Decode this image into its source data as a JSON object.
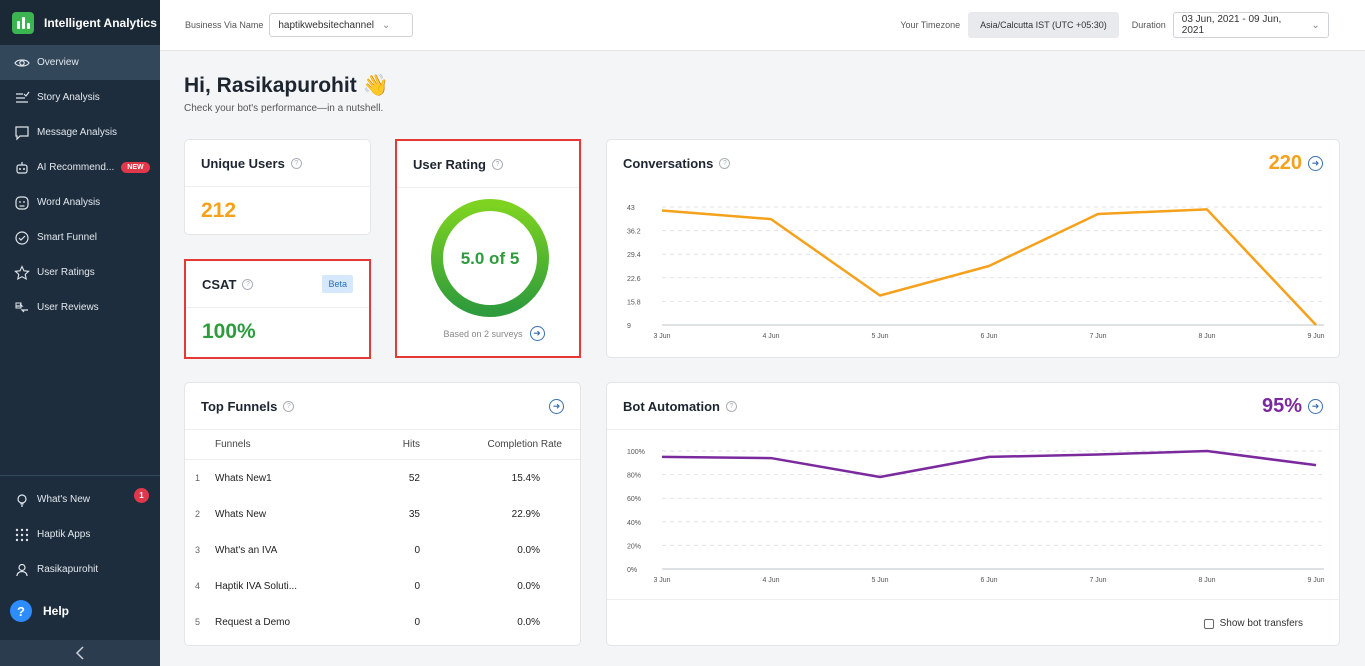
{
  "app": {
    "title": "Intelligent Analytics"
  },
  "sidebar": {
    "items": [
      {
        "label": "Overview",
        "icon": "eye-icon",
        "active": true
      },
      {
        "label": "Story Analysis",
        "icon": "story-icon"
      },
      {
        "label": "Message Analysis",
        "icon": "message-icon"
      },
      {
        "label": "AI Recommend...",
        "icon": "robot-icon",
        "badge": "NEW"
      },
      {
        "label": "Word Analysis",
        "icon": "face-icon"
      },
      {
        "label": "Smart Funnel",
        "icon": "funnel-icon"
      },
      {
        "label": "User Ratings",
        "icon": "star-icon"
      },
      {
        "label": "User Reviews",
        "icon": "review-icon"
      }
    ],
    "bottom": [
      {
        "label": "What's New",
        "icon": "bulb-icon",
        "badge": "1"
      },
      {
        "label": "Haptik Apps",
        "icon": "grid-icon"
      },
      {
        "label": "Rasikapurohit",
        "icon": "user-icon"
      }
    ],
    "help_label": "Help",
    "help_icon_text": "?"
  },
  "header": {
    "business_label": "Business Via Name",
    "business_value": "haptikwebsitechannel",
    "timezone_label": "Your Timezone",
    "timezone_value": "Asia/Calcutta IST (UTC +05:30)",
    "duration_label": "Duration",
    "duration_value": "03 Jun, 2021 - 09 Jun, 2021"
  },
  "greeting": {
    "title": "Hi, Rasikapurohit",
    "emoji": "👋",
    "subtitle": "Check your bot's performance—in a nutshell."
  },
  "unique_users": {
    "title": "Unique Users",
    "value": "212"
  },
  "csat": {
    "title": "CSAT",
    "badge": "Beta",
    "value": "100%"
  },
  "user_rating": {
    "title": "User Rating",
    "value_text": "5.0 of 5",
    "rating": 5.0,
    "max": 5,
    "footnote": "Based on 2 surveys"
  },
  "conversations": {
    "title": "Conversations",
    "value": "220"
  },
  "top_funnels": {
    "title": "Top Funnels",
    "columns": [
      "Funnels",
      "Hits",
      "Completion Rate"
    ],
    "rows": [
      {
        "idx": "1",
        "name": "Whats New1",
        "hits": "52",
        "rate": "15.4%"
      },
      {
        "idx": "2",
        "name": "Whats New",
        "hits": "35",
        "rate": "22.9%"
      },
      {
        "idx": "3",
        "name": "What's an IVA",
        "hits": "0",
        "rate": "0.0%"
      },
      {
        "idx": "4",
        "name": "Haptik IVA Soluti...",
        "hits": "0",
        "rate": "0.0%"
      },
      {
        "idx": "5",
        "name": "Request a Demo",
        "hits": "0",
        "rate": "0.0%"
      }
    ]
  },
  "bot_automation": {
    "title": "Bot Automation",
    "value": "95%",
    "toggle_label": "Show bot transfers"
  },
  "colors": {
    "orange": "#f5a11c",
    "purple": "#7b2a9e",
    "green": "#2e9b3c",
    "sidebar": "#1e2d3d"
  },
  "chart_data": [
    {
      "type": "line",
      "x": [
        "3 Jun",
        "4 Jun",
        "5 Jun",
        "6 Jun",
        "7 Jun",
        "8 Jun",
        "9 Jun"
      ],
      "series": [
        {
          "values": [
            42,
            39.5,
            17.5,
            26,
            41,
            42.3,
            9
          ]
        }
      ],
      "yticks": [
        "43",
        "36.2",
        "29.4",
        "22.6",
        "15.8",
        "9"
      ],
      "ylim": [
        9,
        43
      ],
      "grid": true,
      "color": "#f5a11c"
    },
    {
      "type": "line",
      "x": [
        "3 Jun",
        "4 Jun",
        "5 Jun",
        "6 Jun",
        "7 Jun",
        "8 Jun",
        "9 Jun"
      ],
      "series": [
        {
          "values": [
            95,
            94,
            78,
            95,
            97,
            100,
            88
          ]
        }
      ],
      "yticks": [
        "100%",
        "80%",
        "60%",
        "40%",
        "20%",
        "0%"
      ],
      "ylim": [
        0,
        100
      ],
      "grid": true,
      "color": "#7b2a9e"
    }
  ]
}
